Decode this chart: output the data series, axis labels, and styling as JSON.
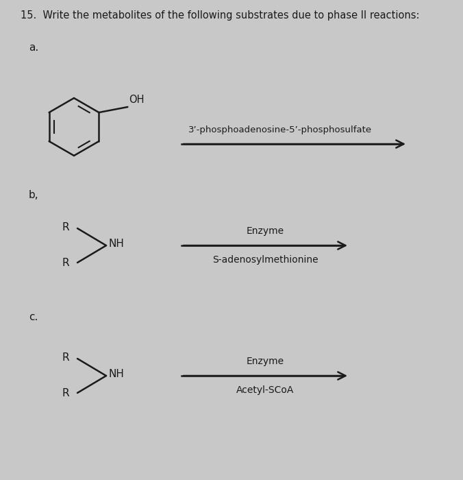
{
  "title": "15.  Write the metabolites of the following substrates due to phase II reactions:",
  "background_color": "#c8c8c8",
  "section_a_label": "a.",
  "section_b_label": "b,",
  "section_c_label": "c.",
  "arrow_a_top_text": "3’-phosphoadenosine-5’-phosphosulfate",
  "arrow_b_top_text": "Enzyme",
  "arrow_b_bottom_text": "S-adenosylmethionine",
  "arrow_c_top_text": "Enzyme",
  "arrow_c_bottom_text": "Acetyl-SCoA",
  "text_color": "#1a1a1a",
  "arrow_color": "#1a1a1a",
  "font_size_title": 10.5,
  "font_size_label": 11,
  "font_size_text": 10,
  "font_size_chem": 11
}
